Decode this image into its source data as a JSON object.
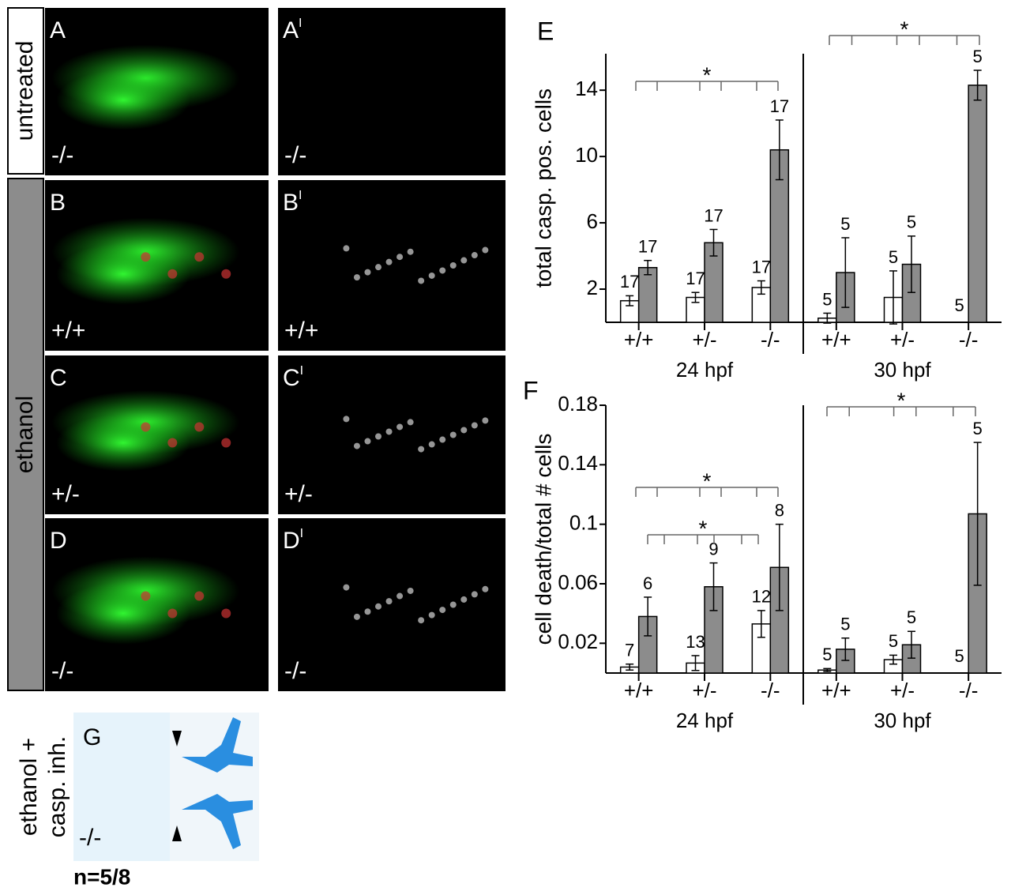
{
  "side_labels": [
    "untreated",
    "ethanol",
    "ethanol +",
    "casp. inh."
  ],
  "panels": [
    {
      "label": "A",
      "genotype": "-/-"
    },
    {
      "label": "A",
      "sup": "I",
      "genotype": "-/-"
    },
    {
      "label": "B",
      "genotype": "+/+"
    },
    {
      "label": "B",
      "sup": "I",
      "genotype": "+/+"
    },
    {
      "label": "C",
      "genotype": "+/-"
    },
    {
      "label": "C",
      "sup": "I",
      "genotype": "+/-"
    },
    {
      "label": "D",
      "genotype": "-/-"
    },
    {
      "label": "D",
      "sup": "I",
      "genotype": "-/-"
    },
    {
      "label": "G",
      "genotype": "-/-",
      "note": "n=5/8"
    }
  ],
  "chart_data": [
    {
      "type": "bar",
      "panel": "E",
      "ylabel": "total casp. pos. cells",
      "categories": [
        "+/+",
        "+/-",
        "-/-",
        "+/+",
        "+/-",
        "-/-"
      ],
      "groups": [
        "24 hpf",
        "30 hpf"
      ],
      "annotations": [
        "*",
        "*"
      ],
      "ylim": [
        0,
        16.2
      ],
      "yticks": [
        2,
        6,
        10,
        14
      ],
      "series": [
        {
          "color": "#ffffff",
          "values": [
            1.3,
            1.5,
            2.1,
            0.25,
            1.5,
            0
          ],
          "errors": [
            0.3,
            0.3,
            0.4,
            0.3,
            1.6,
            0
          ],
          "n": [
            17,
            17,
            17,
            5,
            5,
            5
          ]
        },
        {
          "color": "#8c8c8c",
          "values": [
            3.3,
            4.8,
            10.4,
            3.0,
            3.5,
            14.3
          ],
          "errors": [
            0.43,
            0.8,
            1.8,
            2.1,
            1.7,
            0.9
          ],
          "n": [
            17,
            17,
            17,
            5,
            5,
            5
          ]
        }
      ]
    },
    {
      "type": "bar",
      "panel": "F",
      "ylabel": "cell death/total # cells",
      "categories": [
        "+/+",
        "+/-",
        "-/-",
        "+/+",
        "+/-",
        "-/-"
      ],
      "groups": [
        "24 hpf",
        "30 hpf"
      ],
      "annotations": [
        "*",
        "*",
        "*"
      ],
      "ylim": [
        0,
        0.18
      ],
      "yticks": [
        0.02,
        0.06,
        0.1,
        0.14,
        0.18
      ],
      "series": [
        {
          "color": "#ffffff",
          "values": [
            0.004,
            0.0067,
            0.033,
            0.002,
            0.009,
            0
          ],
          "errors": [
            0.002,
            0.005,
            0.009,
            0.001,
            0.003,
            0
          ],
          "n": [
            7,
            13,
            12,
            5,
            5,
            5
          ]
        },
        {
          "color": "#8c8c8c",
          "values": [
            0.038,
            0.058,
            0.071,
            0.016,
            0.019,
            0.107
          ],
          "errors": [
            0.013,
            0.016,
            0.029,
            0.0075,
            0.009,
            0.048
          ],
          "n": [
            6,
            9,
            8,
            5,
            5,
            5
          ]
        }
      ]
    }
  ]
}
